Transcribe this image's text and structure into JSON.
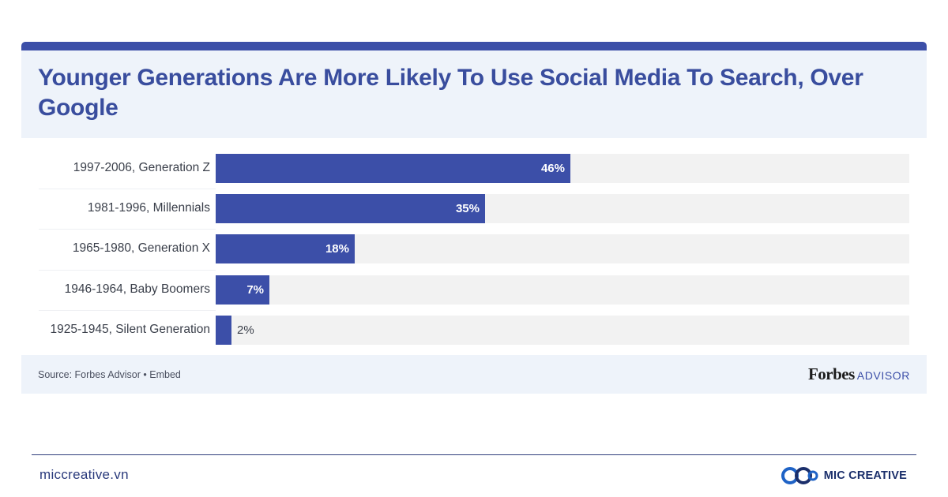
{
  "chart_data": {
    "type": "bar",
    "orientation": "horizontal",
    "title": "Younger Generations Are More Likely To Use Social Media To Search, Over Google",
    "categories": [
      "1997-2006, Generation Z",
      "1981-1996, Millennials",
      "1965-1980, Generation X",
      "1946-1964, Baby Boomers",
      "1925-1945, Silent Generation"
    ],
    "values": [
      46,
      35,
      18,
      7,
      2
    ],
    "value_labels": [
      "46%",
      "35%",
      "18%",
      "7%",
      "2%"
    ],
    "xlim": [
      0,
      90
    ],
    "grid": false,
    "bar_color": "#3c4fa8",
    "track_color": "#f2f2f2"
  },
  "footer": {
    "source": "Source: Forbes Advisor • Embed",
    "brand_word": "Forbes",
    "brand_suffix": "ADVISOR"
  },
  "page_footer": {
    "site": "miccreative.vn",
    "brand": "MIC CREATIVE"
  },
  "colors": {
    "accent": "#3c4fa8",
    "header_bg": "#eef3fa",
    "title": "#394d9e"
  }
}
